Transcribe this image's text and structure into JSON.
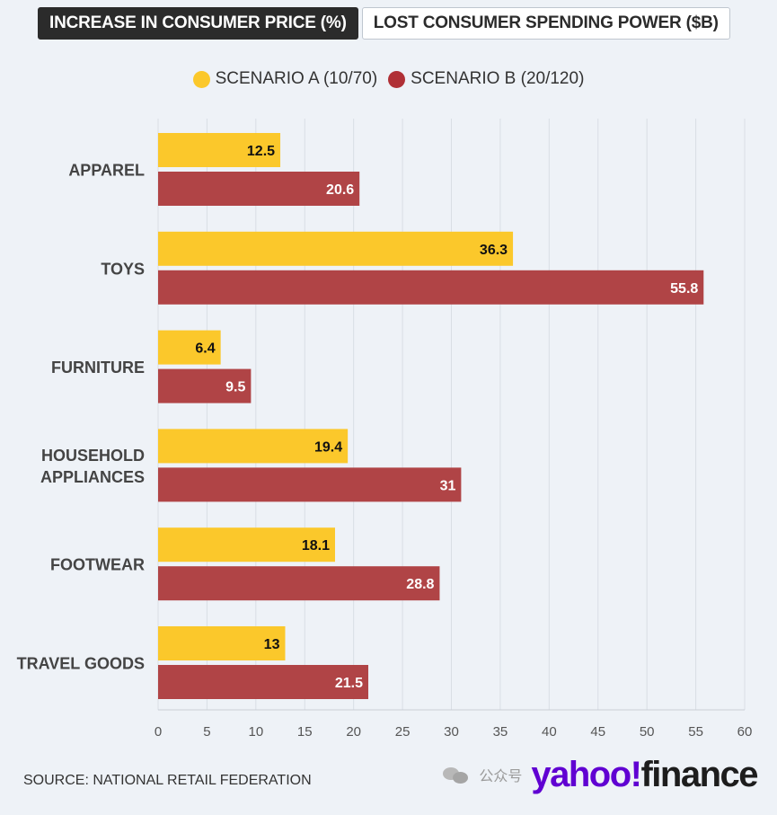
{
  "tabs": [
    {
      "label": "INCREASE IN CONSUMER PRICE (%)",
      "active": true
    },
    {
      "label": "LOST CONSUMER SPENDING POWER ($B)",
      "active": false
    }
  ],
  "legend": [
    {
      "label": "SCENARIO A (10/70)",
      "color": "#fbc82b"
    },
    {
      "label": "SCENARIO B (20/120)",
      "color": "#b03036"
    }
  ],
  "source": "SOURCE: NATIONAL RETAIL FEDERATION",
  "watermark": {
    "text": "公众号",
    "icon": "wechat-icon"
  },
  "logo": {
    "part1": "yahoo",
    "part2": "!",
    "part3": "finance",
    "color1": "#6001d2",
    "color2": "#1d1d1d"
  },
  "chart_data": {
    "type": "bar",
    "orientation": "horizontal",
    "categories": [
      "APPAREL",
      "TOYS",
      "FURNITURE",
      "HOUSEHOLD APPLIANCES",
      "FOOTWEAR",
      "TRAVEL GOODS"
    ],
    "series": [
      {
        "name": "SCENARIO A (10/70)",
        "color": "#fbc82b",
        "label_color": "#111111",
        "values": [
          12.5,
          36.3,
          6.4,
          19.4,
          18.1,
          13
        ]
      },
      {
        "name": "SCENARIO B (20/120)",
        "color": "#b04446",
        "label_color": "#ffffff",
        "values": [
          20.6,
          55.8,
          9.5,
          31,
          28.8,
          21.5
        ]
      }
    ],
    "xlim": [
      0,
      60
    ],
    "xticks": [
      0,
      5,
      10,
      15,
      20,
      25,
      30,
      35,
      40,
      45,
      50,
      55,
      60
    ],
    "grid": true,
    "legend_position": "top"
  }
}
